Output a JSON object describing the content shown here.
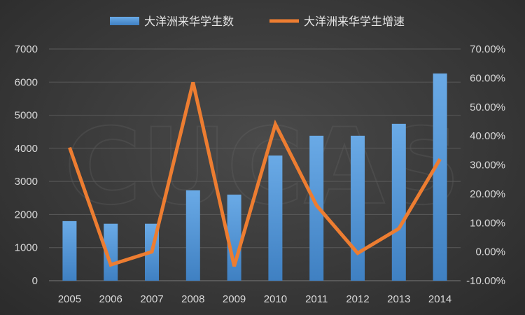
{
  "watermark": "CUCAS",
  "chart_data": {
    "type": "bar",
    "categories": [
      "2005",
      "2006",
      "2007",
      "2008",
      "2009",
      "2010",
      "2011",
      "2012",
      "2013",
      "2014"
    ],
    "series": [
      {
        "name": "大洋洲来华学生数",
        "type": "bar",
        "axis": "left",
        "color": "#5b9bd5",
        "values": [
          1800,
          1720,
          1720,
          2730,
          2600,
          3780,
          4380,
          4380,
          4740,
          6260
        ]
      },
      {
        "name": "大洋洲来华学生增速",
        "type": "line",
        "axis": "right",
        "color": "#ed7d31",
        "values": [
          0.36,
          -0.045,
          0.0,
          0.585,
          -0.05,
          0.44,
          0.16,
          -0.005,
          0.08,
          0.32
        ]
      }
    ],
    "y_left": {
      "ylim": [
        0,
        7000
      ],
      "ticks": [
        0,
        1000,
        2000,
        3000,
        4000,
        5000,
        6000,
        7000
      ],
      "tick_labels": [
        "0",
        "1000",
        "2000",
        "3000",
        "4000",
        "5000",
        "6000",
        "7000"
      ]
    },
    "y_right": {
      "ylim": [
        -0.1,
        0.7
      ],
      "ticks": [
        -0.1,
        0.0,
        0.1,
        0.2,
        0.3,
        0.4,
        0.5,
        0.6,
        0.7
      ],
      "tick_labels": [
        "-10.00%",
        "0.00%",
        "10.00%",
        "20.00%",
        "30.00%",
        "40.00%",
        "50.00%",
        "60.00%",
        "70.00%"
      ]
    },
    "grid": true,
    "legend_position": "top-center",
    "title": "",
    "xlabel": "",
    "ylabel": ""
  }
}
